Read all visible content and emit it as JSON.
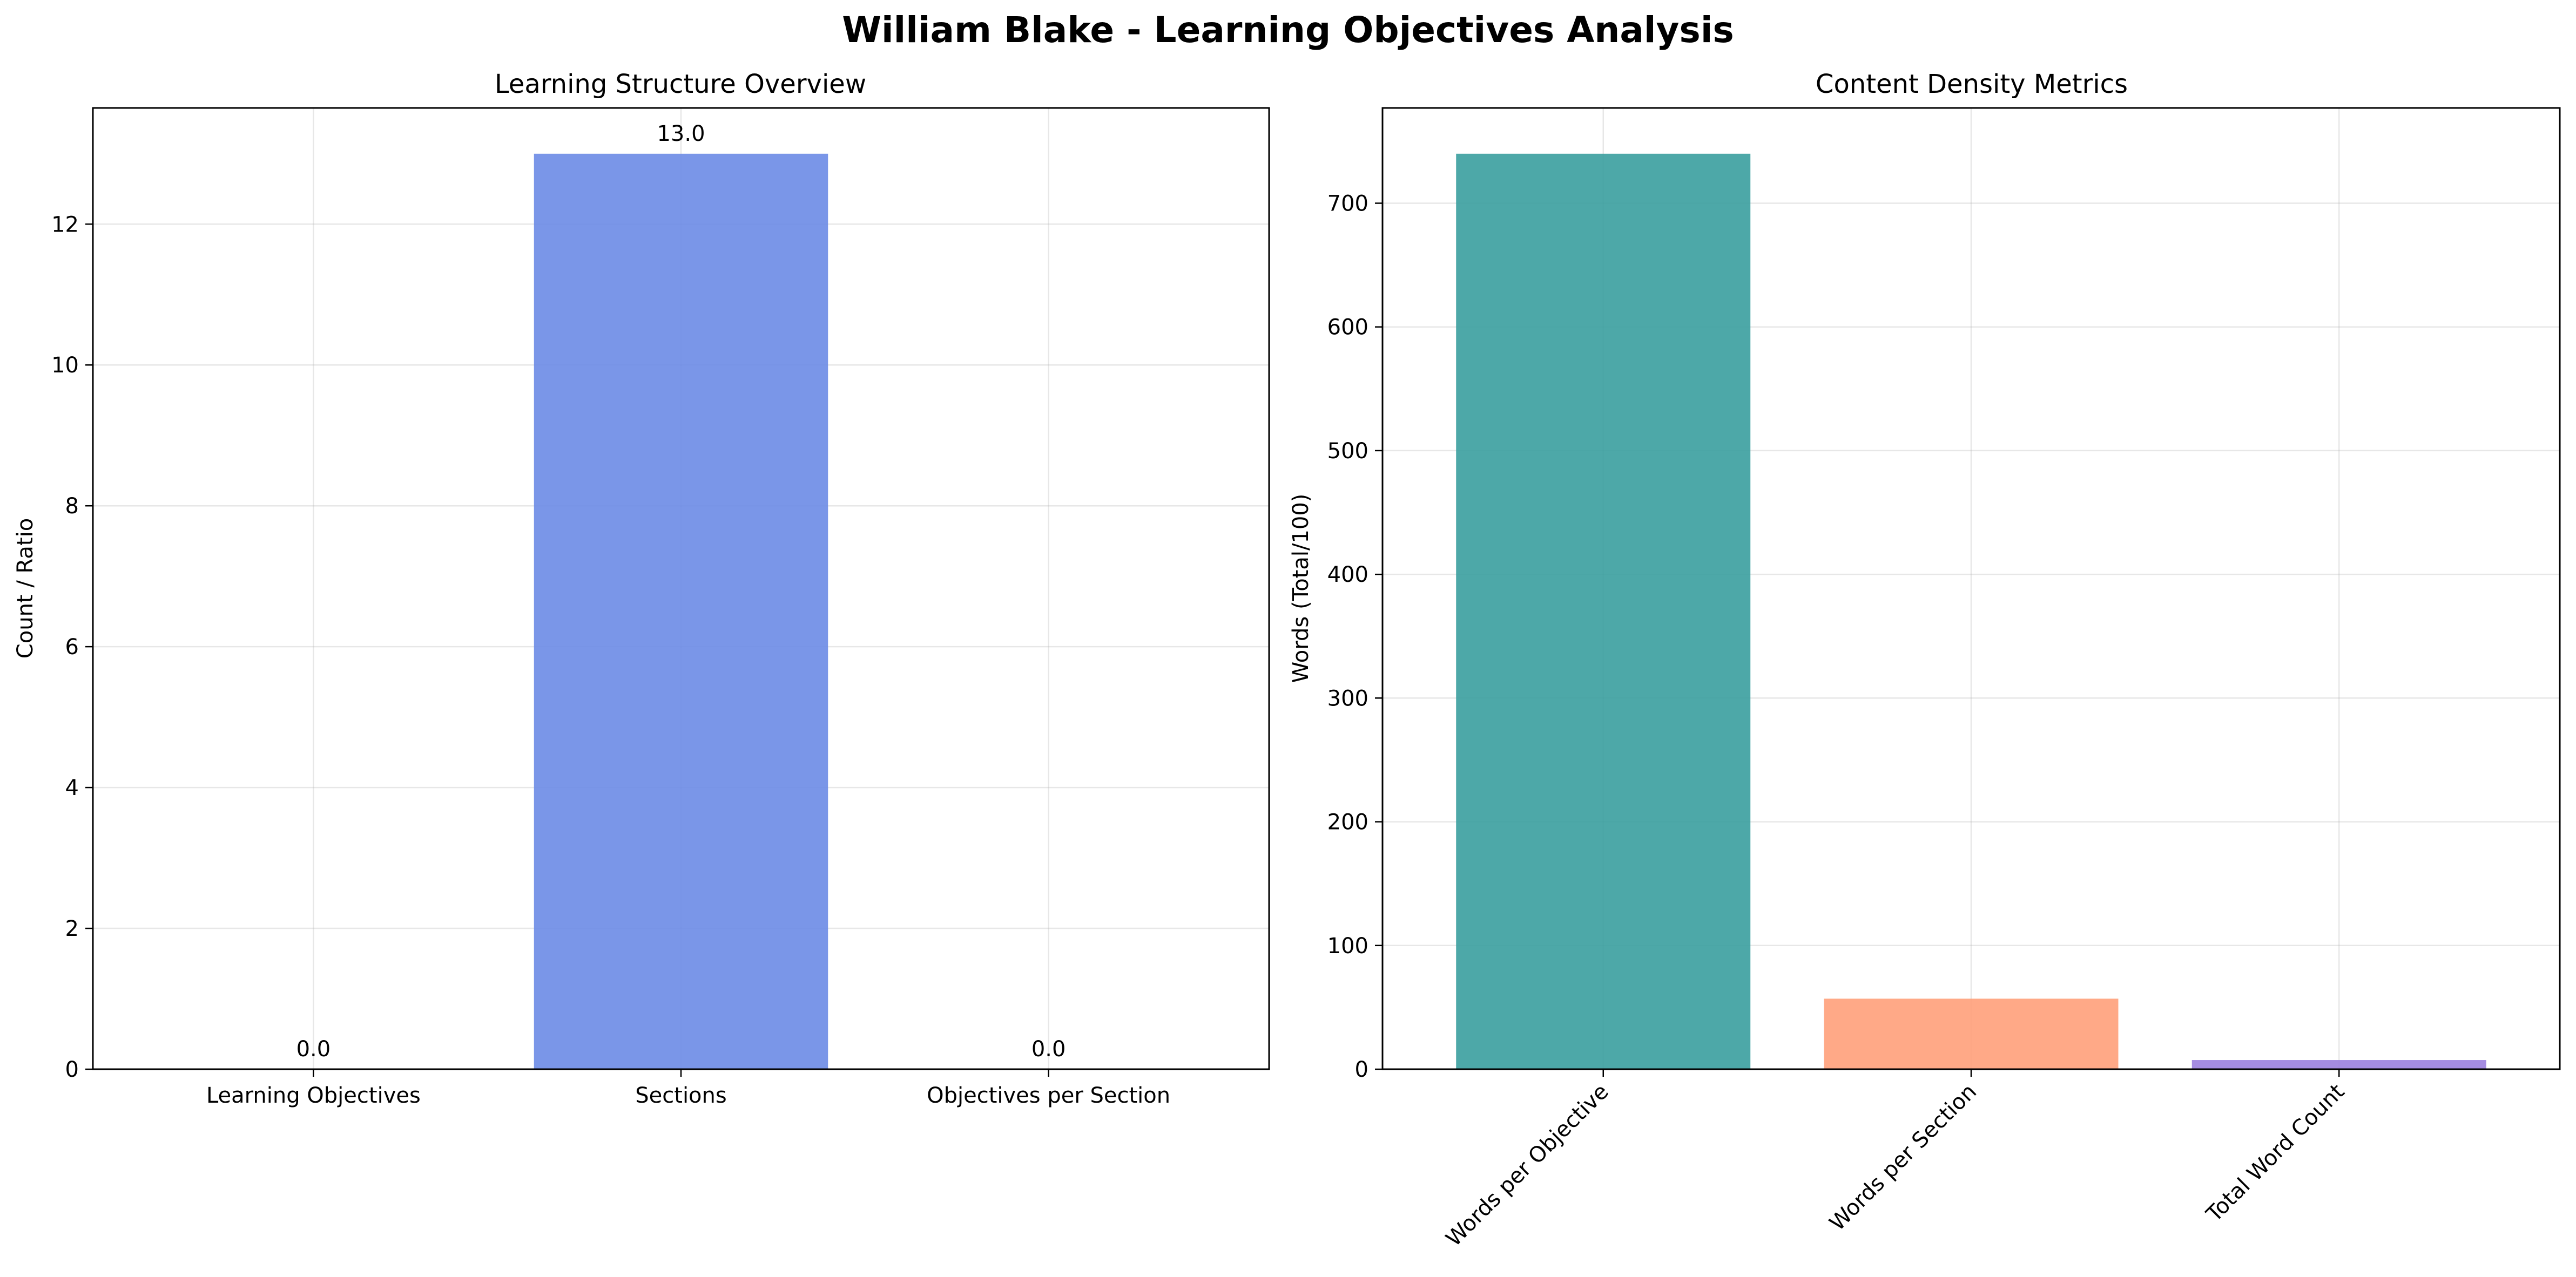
{
  "figure_title": "William Blake - Learning Objectives Analysis",
  "chart_data": [
    {
      "type": "bar",
      "title": "Learning Structure Overview",
      "xlabel": "",
      "ylabel": "Count / Ratio",
      "categories": [
        "Learning Objectives",
        "Sections",
        "Objectives per Section"
      ],
      "values": [
        0.0,
        13.0,
        0.0
      ],
      "data_labels": [
        "0.0",
        "13.0",
        "0.0"
      ],
      "colors": [
        "#6B8BE6",
        "#6B8BE6",
        "#6B8BE6"
      ],
      "ylim": [
        0,
        13.65
      ],
      "yticks": [
        0,
        2,
        4,
        6,
        8,
        10,
        12
      ],
      "ytick_labels": [
        "0",
        "2",
        "4",
        "6",
        "8",
        "10",
        "12"
      ],
      "xtick_rotation": 0,
      "grid": true
    },
    {
      "type": "bar",
      "title": "Content Density Metrics",
      "xlabel": "",
      "ylabel": "Words (Total/100)",
      "categories": [
        "Words per Objective",
        "Words per Section",
        "Total Word Count"
      ],
      "values": [
        740,
        57,
        7.4
      ],
      "colors": [
        "#3A9E9E",
        "#FFA07A",
        "#9B7FDE"
      ],
      "ylim": [
        0,
        777
      ],
      "yticks": [
        0,
        100,
        200,
        300,
        400,
        500,
        600,
        700
      ],
      "ytick_labels": [
        "0",
        "100",
        "200",
        "300",
        "400",
        "500",
        "600",
        "700"
      ],
      "xtick_rotation": -45,
      "grid": true
    }
  ]
}
